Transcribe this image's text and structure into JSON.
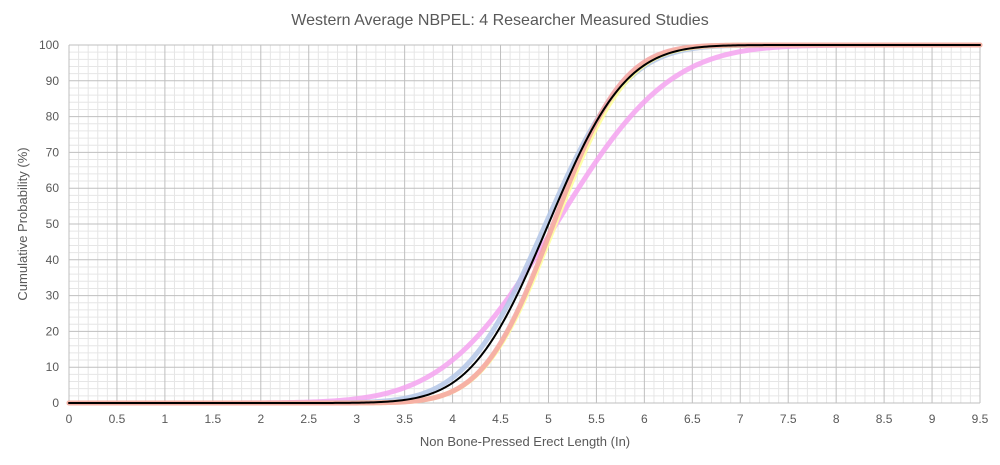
{
  "chart_data": {
    "type": "line",
    "title": "Western Average NBPEL: 4 Researcher Measured Studies",
    "xlabel": "Non Bone-Pressed Erect Length (In)",
    "ylabel": "Cumulative  Probability (%)",
    "xlim": [
      0,
      9.5
    ],
    "ylim": [
      0,
      100
    ],
    "x_ticks": [
      "0",
      "0.5",
      "1",
      "1.5",
      "2",
      "2.5",
      "3",
      "3.5",
      "4",
      "4.5",
      "5",
      "5.5",
      "6",
      "6.5",
      "7",
      "7.5",
      "8",
      "8.5",
      "9",
      "9.5"
    ],
    "y_ticks": [
      "0",
      "10",
      "20",
      "30",
      "40",
      "50",
      "60",
      "70",
      "80",
      "90",
      "100"
    ],
    "grid": true,
    "legend": "none",
    "series": [
      {
        "color": "#f5a3f0",
        "mean": 5.08,
        "sd": 0.92
      },
      {
        "color": "#b4c7e7",
        "mean": 4.97,
        "sd": 0.66
      },
      {
        "color": "#ffff99",
        "mean": 5.07,
        "sd": 0.58
      },
      {
        "color": "#f4a3a3",
        "mean": 5.05,
        "sd": 0.57
      },
      {
        "color": "#000000",
        "mean": 5.0,
        "sd": 0.63
      }
    ]
  }
}
